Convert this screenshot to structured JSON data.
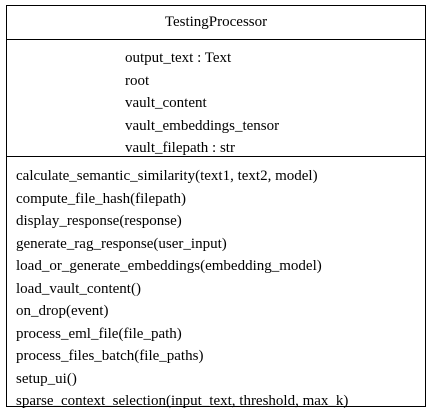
{
  "class": {
    "name": "TestingProcessor",
    "attributes": [
      "output_text : Text",
      "root",
      "vault_content",
      "vault_embeddings_tensor",
      "vault_filepath : str"
    ],
    "methods": [
      "calculate_semantic_similarity(text1, text2, model)",
      "compute_file_hash(filepath)",
      "display_response(response)",
      "generate_rag_response(user_input)",
      "load_or_generate_embeddings(embedding_model)",
      "load_vault_content()",
      "on_drop(event)",
      "process_eml_file(file_path)",
      "process_files_batch(file_paths)",
      "setup_ui()",
      "sparse_context_selection(input_text, threshold, max_k)"
    ]
  }
}
